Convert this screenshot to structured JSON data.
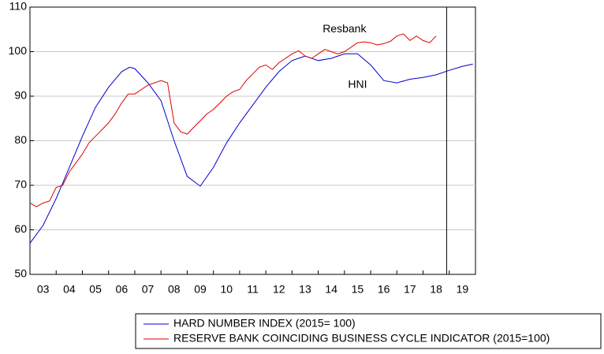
{
  "chart_data": {
    "type": "line",
    "annotations": [
      {
        "text": "Resbank",
        "x": 15,
        "y": 105
      },
      {
        "text": "HNI",
        "x": 15.5,
        "y": 92.5
      }
    ],
    "series": [
      {
        "name": "HARD NUMBER INDEX (2015= 100)",
        "color": "#0000cc",
        "x": [
          3,
          3.5,
          4,
          4.5,
          5,
          5.5,
          6,
          6.5,
          6.8,
          7,
          7.5,
          8,
          8.5,
          9,
          9.5,
          10,
          10.5,
          11,
          11.5,
          12,
          12.5,
          13,
          13.5,
          14,
          14.5,
          15,
          15.5,
          16,
          16.5,
          17,
          17.5,
          18,
          18.5,
          19,
          19.5,
          19.9
        ],
        "values": [
          57,
          61,
          67,
          74,
          81,
          87.5,
          92,
          95.5,
          96.5,
          96.2,
          93,
          89,
          80,
          72,
          69.8,
          74,
          79.5,
          84,
          88,
          92,
          95.5,
          98,
          99,
          98,
          98.5,
          99.5,
          99.5,
          97,
          93.5,
          93,
          93.8,
          94.2,
          94.8,
          95.8,
          96.7,
          97.2
        ]
      },
      {
        "name": "RESERVE BANK COINCIDING BUSINESS CYCLE INDICATOR (2015=100)",
        "color": "#dd0000",
        "x": [
          3,
          3.25,
          3.5,
          3.75,
          4,
          4.25,
          4.5,
          4.75,
          5,
          5.25,
          5.5,
          5.75,
          6,
          6.25,
          6.5,
          6.75,
          7,
          7.25,
          7.5,
          7.75,
          8,
          8.25,
          8.5,
          8.75,
          9,
          9.25,
          9.5,
          9.75,
          10,
          10.25,
          10.5,
          10.75,
          11,
          11.25,
          11.5,
          11.75,
          12,
          12.25,
          12.5,
          12.75,
          13,
          13.25,
          13.5,
          13.75,
          14,
          14.25,
          14.5,
          14.75,
          15,
          15.25,
          15.5,
          15.75,
          16,
          16.25,
          16.5,
          16.75,
          17,
          17.25,
          17.5,
          17.75,
          18,
          18.25,
          18.5
        ],
        "values": [
          66,
          65.2,
          66,
          66.5,
          69.5,
          70,
          73,
          75,
          77,
          79.5,
          81,
          82.5,
          84,
          86,
          88.5,
          90.5,
          90.5,
          91.5,
          92.5,
          93,
          93.5,
          93,
          84,
          82,
          81.5,
          83,
          84.5,
          86,
          87,
          88.5,
          90,
          91,
          91.5,
          93.5,
          95,
          96.5,
          97,
          96,
          97.5,
          98.5,
          99.5,
          100.2,
          99,
          98.5,
          99.5,
          100.5,
          100,
          99.5,
          100,
          101,
          102,
          102.2,
          102,
          101.5,
          101.8,
          102.3,
          103.5,
          104,
          102.5,
          103.5,
          102.5,
          102,
          103.5
        ]
      }
    ],
    "xlim": [
      3,
      20
    ],
    "ylim": [
      50,
      110
    ],
    "xticks": [
      {
        "value": 3,
        "label": "03"
      },
      {
        "value": 4,
        "label": "04"
      },
      {
        "value": 5,
        "label": "05"
      },
      {
        "value": 6,
        "label": "06"
      },
      {
        "value": 7,
        "label": "07"
      },
      {
        "value": 8,
        "label": "08"
      },
      {
        "value": 9,
        "label": "09"
      },
      10,
      11,
      12,
      13,
      14,
      15,
      16,
      17,
      18,
      19
    ],
    "yticks": [
      50,
      60,
      70,
      80,
      90,
      100,
      110
    ],
    "vline": 18.9,
    "grid": true,
    "legend": "bottom"
  }
}
